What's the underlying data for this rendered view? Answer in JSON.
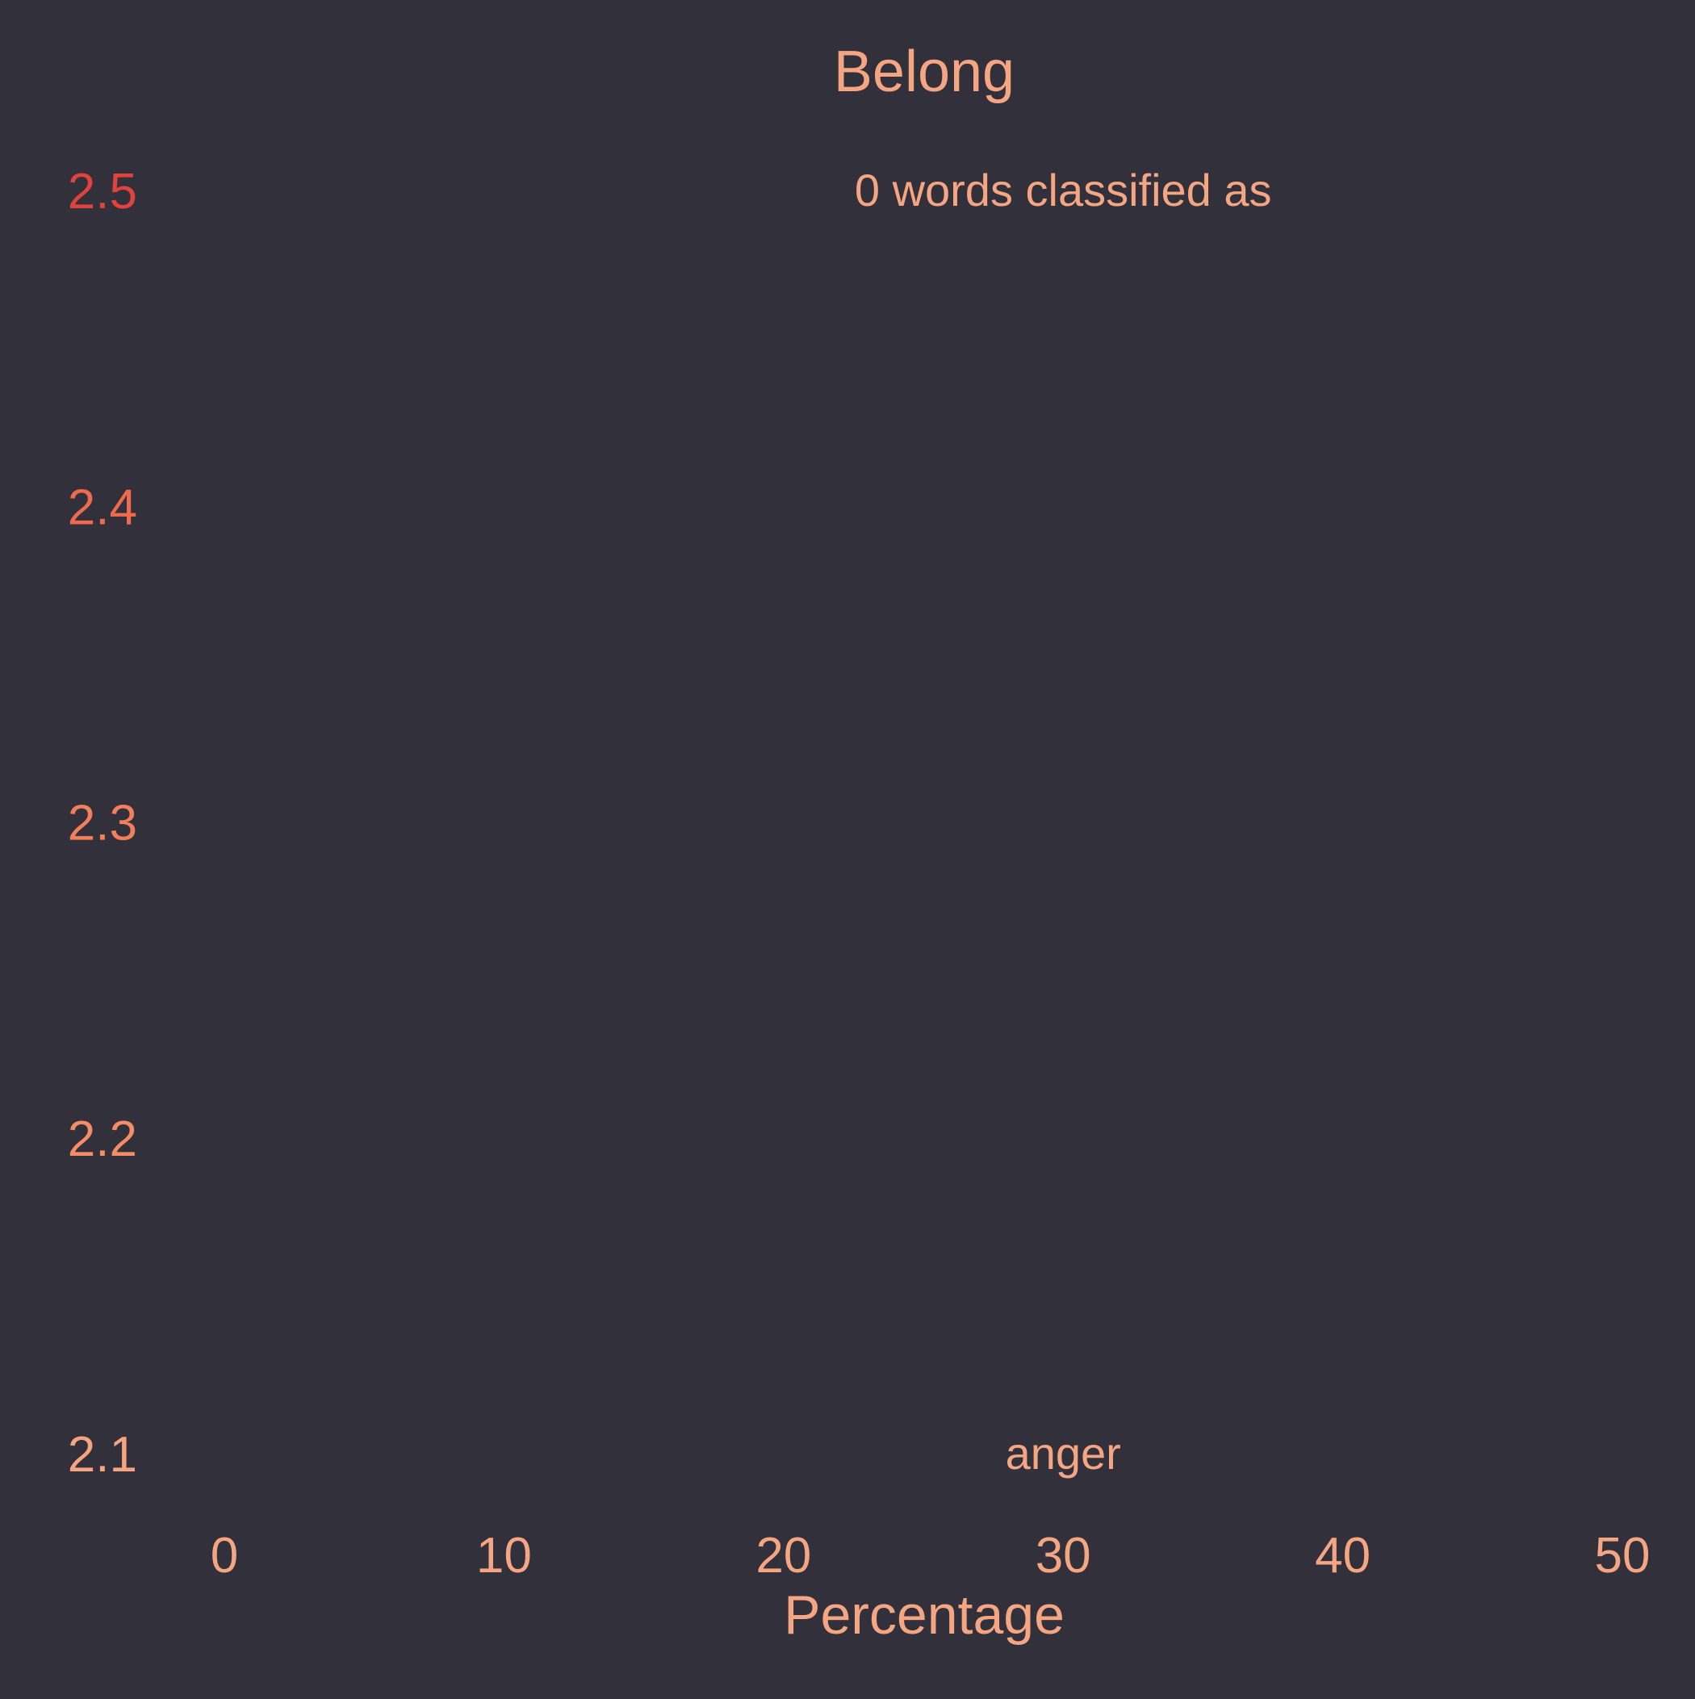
{
  "chart_data": {
    "type": "bar",
    "title": "Belong",
    "xlabel": "Percentage",
    "ylabel": "",
    "xlim": [
      0,
      50
    ],
    "ylim": [
      2.1,
      2.5
    ],
    "x_ticks": [
      "0",
      "10",
      "20",
      "30",
      "40",
      "50"
    ],
    "y_ticks": [
      "2.5",
      "2.4",
      "2.3",
      "2.2",
      "2.1"
    ],
    "annotations": [
      {
        "text": "0 words classified as",
        "x": 30,
        "y": 2.5
      },
      {
        "text": "anger",
        "x": 30,
        "y": 2.1
      }
    ],
    "categories": [],
    "values": [],
    "grid": false,
    "legend": "none"
  },
  "colors": {
    "background": "#31303b",
    "text": "#f4a582",
    "y_tick_colors": [
      "#e0433b",
      "#ee6a4e",
      "#f27f5c",
      "#f48d67",
      "#f6a37f"
    ]
  }
}
